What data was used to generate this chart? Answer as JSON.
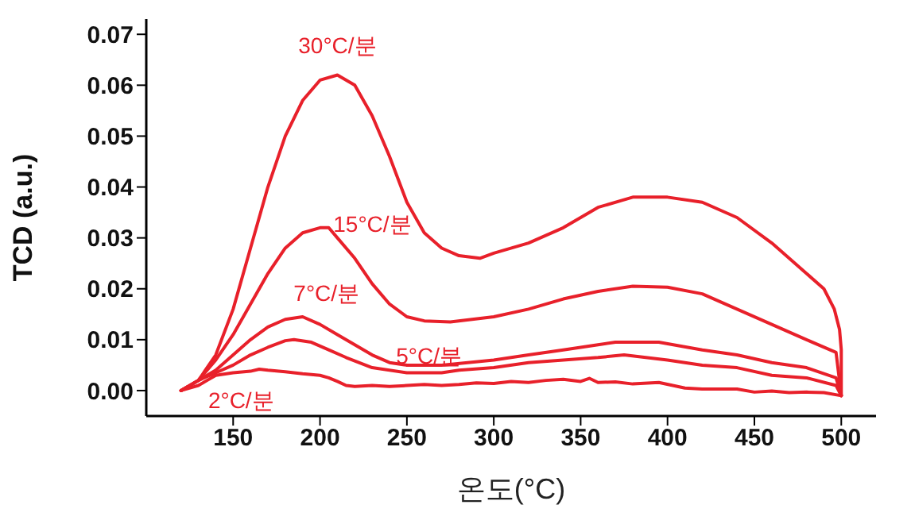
{
  "chart_data": {
    "type": "line",
    "xlabel": "온도(°C)",
    "ylabel": "TCD (a.u.)",
    "xlim": [
      100,
      520
    ],
    "xticks": [
      150,
      200,
      250,
      300,
      350,
      400,
      450,
      500
    ],
    "ylim": [
      -0.005,
      0.073
    ],
    "yticks": [
      {
        "value": 0,
        "label": "0.00"
      },
      0.01,
      0.02,
      0.03,
      0.04,
      0.05,
      0.06,
      0.07
    ],
    "grid": false,
    "legend": false,
    "marker": "none",
    "line_style": "solid",
    "series": [
      {
        "name": "30°C/분",
        "color": "#e8202a",
        "x": [
          120,
          130,
          140,
          150,
          160,
          170,
          180,
          190,
          200,
          210,
          220,
          230,
          240,
          250,
          260,
          270,
          280,
          292,
          300,
          320,
          340,
          360,
          380,
          400,
          420,
          440,
          460,
          480,
          490,
          496,
          499,
          500,
          500
        ],
        "values": [
          0,
          0.002,
          0.007,
          0.016,
          0.028,
          0.04,
          0.05,
          0.057,
          0.061,
          0.062,
          0.06,
          0.054,
          0.046,
          0.037,
          0.031,
          0.028,
          0.0265,
          0.026,
          0.027,
          0.029,
          0.032,
          0.036,
          0.038,
          0.038,
          0.037,
          0.034,
          0.029,
          0.023,
          0.02,
          0.016,
          0.012,
          0.008,
          -0.001
        ]
      },
      {
        "name": "15°C/분",
        "color": "#e8202a",
        "x": [
          120,
          130,
          140,
          150,
          160,
          170,
          180,
          190,
          200,
          205,
          210,
          220,
          230,
          240,
          250,
          260,
          275,
          300,
          320,
          340,
          360,
          380,
          400,
          420,
          440,
          460,
          480,
          497,
          500
        ],
        "values": [
          0,
          0.002,
          0.006,
          0.011,
          0.017,
          0.023,
          0.028,
          0.031,
          0.032,
          0.032,
          0.03,
          0.026,
          0.021,
          0.017,
          0.0145,
          0.0137,
          0.0135,
          0.0145,
          0.016,
          0.018,
          0.0195,
          0.0205,
          0.0203,
          0.019,
          0.016,
          0.013,
          0.01,
          0.0075,
          -0.001
        ]
      },
      {
        "name": "7°C/분",
        "color": "#e8202a",
        "x": [
          120,
          130,
          140,
          150,
          160,
          170,
          180,
          190,
          200,
          210,
          220,
          230,
          240,
          250,
          270,
          300,
          320,
          340,
          360,
          370,
          395,
          420,
          440,
          460,
          480,
          497,
          500
        ],
        "values": [
          0,
          0.002,
          0.004,
          0.007,
          0.01,
          0.0125,
          0.014,
          0.0145,
          0.013,
          0.011,
          0.009,
          0.007,
          0.0055,
          0.005,
          0.005,
          0.006,
          0.007,
          0.008,
          0.009,
          0.0095,
          0.0095,
          0.008,
          0.007,
          0.0055,
          0.0045,
          0.0025,
          -0.001
        ]
      },
      {
        "name": "5°C/분",
        "color": "#e8202a",
        "x": [
          120,
          130,
          140,
          150,
          160,
          170,
          180,
          185,
          195,
          205,
          215,
          230,
          250,
          270,
          280,
          300,
          320,
          340,
          360,
          375,
          400,
          420,
          440,
          460,
          480,
          497,
          500
        ],
        "values": [
          0,
          0.002,
          0.0035,
          0.005,
          0.007,
          0.0085,
          0.0098,
          0.01,
          0.0095,
          0.008,
          0.0065,
          0.0045,
          0.0035,
          0.0035,
          0.004,
          0.0045,
          0.0055,
          0.006,
          0.0065,
          0.007,
          0.006,
          0.005,
          0.0045,
          0.003,
          0.0025,
          0.001,
          -0.001
        ]
      },
      {
        "name": "2°C/분",
        "color": "#e8202a",
        "x": [
          120,
          130,
          135,
          140,
          150,
          160,
          165,
          170,
          180,
          190,
          200,
          205,
          210,
          215,
          220,
          230,
          240,
          250,
          260,
          270,
          280,
          290,
          300,
          310,
          320,
          330,
          340,
          350,
          355,
          360,
          370,
          380,
          395,
          410,
          420,
          440,
          450,
          460,
          470,
          480,
          490,
          500
        ],
        "values": [
          0,
          0.001,
          0.002,
          0.003,
          0.0035,
          0.0038,
          0.0042,
          0.004,
          0.0037,
          0.0033,
          0.003,
          0.0025,
          0.0018,
          0.001,
          0.0008,
          0.001,
          0.0008,
          0.001,
          0.0012,
          0.001,
          0.0012,
          0.0015,
          0.0014,
          0.0018,
          0.0016,
          0.002,
          0.0022,
          0.0018,
          0.0024,
          0.0016,
          0.0017,
          0.0013,
          0.0016,
          0.0005,
          0.0003,
          0.0003,
          -0.0003,
          -0.0001,
          -0.0004,
          -0.0003,
          -0.0004,
          -0.001
        ]
      }
    ]
  }
}
